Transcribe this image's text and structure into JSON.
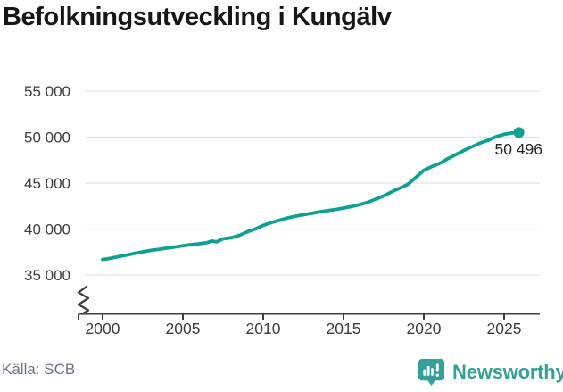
{
  "header": {
    "title": "Befolkningsutveckling i Kungälv"
  },
  "colors": {
    "accent_teal": "#0ba294",
    "logo_teal": "#35a098",
    "grid_color": "#e3e3e3",
    "axis_color": "#3f3f3f",
    "axis_text": "#3d3d3d",
    "title_color": "#161616",
    "source_text": "#6c7480"
  },
  "chart_data": {
    "type": "line",
    "title": "Befolkningsutveckling i Kungälv",
    "xlabel": "",
    "ylabel": "",
    "xlim": [
      2000,
      2026
    ],
    "ylim": [
      35000,
      55000
    ],
    "grid": true,
    "legend": false,
    "axis_break_bottom_left": true,
    "line_color": "#0ba294",
    "x_ticks": [
      {
        "value": 2000,
        "label": "2000"
      },
      {
        "value": 2005,
        "label": "2005"
      },
      {
        "value": 2010,
        "label": "2010"
      },
      {
        "value": 2015,
        "label": "2015"
      },
      {
        "value": 2020,
        "label": "2020"
      },
      {
        "value": 2025,
        "label": "2025"
      }
    ],
    "y_ticks": [
      {
        "value": 55000,
        "label": "55 000"
      },
      {
        "value": 50000,
        "label": "50 000"
      },
      {
        "value": 45000,
        "label": "45 000"
      },
      {
        "value": 40000,
        "label": "40 000"
      },
      {
        "value": 35000,
        "label": "35 000"
      }
    ],
    "points": [
      [
        2000,
        36690
      ],
      [
        2000.5,
        36830
      ],
      [
        2001,
        37000
      ],
      [
        2001.5,
        37170
      ],
      [
        2002,
        37350
      ],
      [
        2002.5,
        37520
      ],
      [
        2003,
        37680
      ],
      [
        2003.5,
        37800
      ],
      [
        2004,
        37920
      ],
      [
        2004.5,
        38050
      ],
      [
        2005,
        38180
      ],
      [
        2005.5,
        38300
      ],
      [
        2006,
        38400
      ],
      [
        2006.5,
        38520
      ],
      [
        2006.8,
        38700
      ],
      [
        2007.1,
        38600
      ],
      [
        2007.5,
        38930
      ],
      [
        2008,
        39050
      ],
      [
        2008.5,
        39300
      ],
      [
        2009,
        39690
      ],
      [
        2009.5,
        40000
      ],
      [
        2010,
        40400
      ],
      [
        2010.5,
        40700
      ],
      [
        2011,
        40950
      ],
      [
        2011.5,
        41200
      ],
      [
        2012,
        41400
      ],
      [
        2012.5,
        41550
      ],
      [
        2013,
        41700
      ],
      [
        2013.5,
        41870
      ],
      [
        2014,
        42000
      ],
      [
        2014.5,
        42130
      ],
      [
        2015,
        42280
      ],
      [
        2015.5,
        42450
      ],
      [
        2016,
        42650
      ],
      [
        2016.5,
        42900
      ],
      [
        2017,
        43250
      ],
      [
        2017.5,
        43600
      ],
      [
        2018,
        44050
      ],
      [
        2018.5,
        44450
      ],
      [
        2019,
        44850
      ],
      [
        2019.5,
        45600
      ],
      [
        2020,
        46400
      ],
      [
        2020.5,
        46800
      ],
      [
        2021,
        47150
      ],
      [
        2021.5,
        47650
      ],
      [
        2022,
        48100
      ],
      [
        2022.5,
        48550
      ],
      [
        2023,
        48950
      ],
      [
        2023.5,
        49350
      ],
      [
        2024,
        49650
      ],
      [
        2024.5,
        50050
      ],
      [
        2025,
        50300
      ],
      [
        2025.5,
        50450
      ],
      [
        2025.92,
        50496
      ]
    ],
    "end_point": {
      "x": 2025.92,
      "y": 50496,
      "label": "50 496"
    }
  },
  "footer": {
    "source": "Källa: SCB",
    "brand": "Newsworthy"
  }
}
